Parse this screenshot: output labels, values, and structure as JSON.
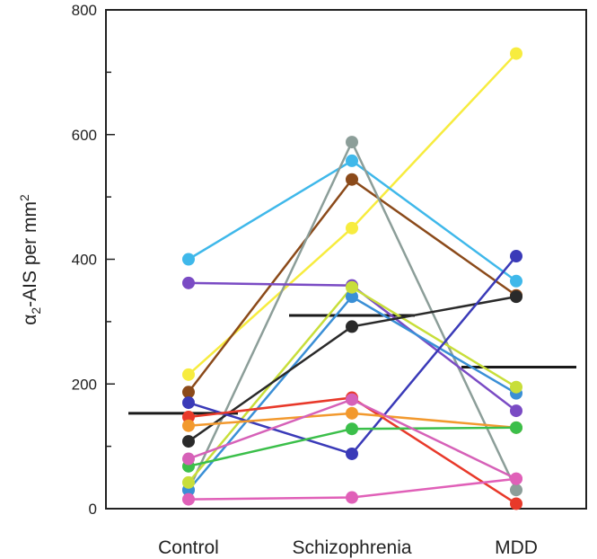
{
  "chart_data": {
    "type": "scatter",
    "categories": [
      "Control",
      "Schizophrenia",
      "MDD"
    ],
    "ylabel_greek": "α",
    "ylabel_sub": "2",
    "ylabel_main": "-AIS per mm",
    "ylabel_sup": "2",
    "ylim": [
      0,
      800
    ],
    "yticks": [
      "0",
      "200",
      "400",
      "600",
      "800"
    ],
    "grid": false,
    "legend": "none",
    "series": [
      {
        "color": "#f7ec3f",
        "values": [
          215,
          450,
          730
        ]
      },
      {
        "color": "#3fb8ea",
        "values": [
          400,
          558,
          365
        ]
      },
      {
        "color": "#8b4a1a",
        "values": [
          187,
          528,
          342
        ]
      },
      {
        "color": "#8c9e99",
        "values": [
          30,
          588,
          30
        ]
      },
      {
        "color": "#7a4bc4",
        "values": [
          362,
          358,
          157
        ]
      },
      {
        "color": "#3a8fd6",
        "values": [
          30,
          340,
          185
        ]
      },
      {
        "color": "#c8de3a",
        "values": [
          42,
          355,
          195
        ]
      },
      {
        "color": "#2a2a2a",
        "values": [
          108,
          292,
          340
        ]
      },
      {
        "color": "#3a3ab8",
        "values": [
          170,
          88,
          405
        ]
      },
      {
        "color": "#e8392a",
        "values": [
          147,
          178,
          8
        ]
      },
      {
        "color": "#f2992e",
        "values": [
          133,
          153,
          130
        ]
      },
      {
        "color": "#3bbf4a",
        "values": [
          68,
          128,
          130
        ]
      },
      {
        "color": "#d661b8",
        "values": [
          80,
          175,
          48
        ]
      },
      {
        "color": "#e060b8",
        "values": [
          15,
          18,
          48
        ]
      }
    ],
    "means": [
      {
        "value": 153
      },
      {
        "value": 310
      },
      {
        "value": 227
      }
    ]
  }
}
